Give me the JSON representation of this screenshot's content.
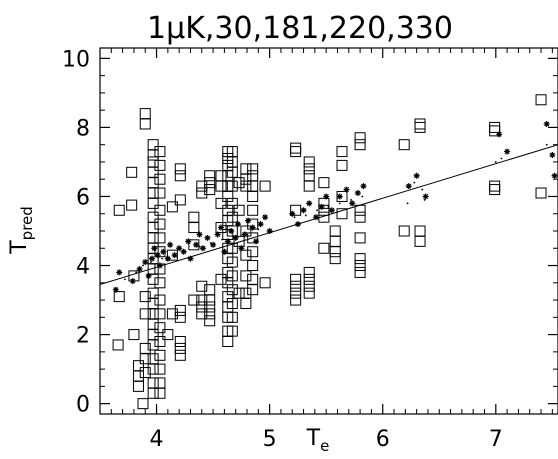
{
  "chart_data": {
    "type": "scatter",
    "title": "1μK,30,181,220,330",
    "xlabel": "Te",
    "ylabel": "Tpred",
    "xlim": [
      3.5,
      7.55
    ],
    "ylim": [
      -0.3,
      10.3
    ],
    "xticks": [
      4,
      5,
      6,
      7
    ],
    "yticks": [
      0,
      2,
      4,
      6,
      8,
      10
    ],
    "x_minor_ticks": [
      3.6,
      3.7,
      3.8,
      3.9,
      4.1,
      4.2,
      4.3,
      4.4,
      4.5,
      4.6,
      4.7,
      4.8,
      4.9,
      5.1,
      5.2,
      5.3,
      5.4,
      5.5,
      5.6,
      5.7,
      5.8,
      5.9,
      6.1,
      6.2,
      6.3,
      6.4,
      6.5,
      6.6,
      6.7,
      6.8,
      6.9,
      7.1,
      7.2,
      7.3,
      7.4,
      7.5
    ],
    "y_minor_ticks": [
      0.5,
      1,
      1.5,
      2.5,
      3,
      3.5,
      4.5,
      5,
      5.5,
      6.5,
      7,
      7.5,
      8.5,
      9,
      9.5
    ],
    "fit_line": {
      "x": [
        3.5,
        7.55
      ],
      "y": [
        3.45,
        7.5
      ]
    },
    "series": [
      {
        "marker": "square",
        "points": [
          [
            3.67,
            5.6
          ],
          [
            3.67,
            3.1
          ],
          [
            3.66,
            1.7
          ],
          [
            3.78,
            6.7
          ],
          [
            3.78,
            5.75
          ],
          [
            3.8,
            3.7
          ],
          [
            3.8,
            2.0
          ],
          [
            3.84,
            1.1
          ],
          [
            3.84,
            0.8
          ],
          [
            3.84,
            0.5
          ],
          [
            3.9,
            8.4
          ],
          [
            3.9,
            8.1
          ],
          [
            3.9,
            3.1
          ],
          [
            3.9,
            2.6
          ],
          [
            3.9,
            1.6
          ],
          [
            3.9,
            1.3
          ],
          [
            3.9,
            0.9
          ],
          [
            3.88,
            0.0
          ],
          [
            3.97,
            7.5
          ],
          [
            3.97,
            7.2
          ],
          [
            3.97,
            7.0
          ],
          [
            3.97,
            6.7
          ],
          [
            3.97,
            6.4
          ],
          [
            3.97,
            6.1
          ],
          [
            3.97,
            5.8
          ],
          [
            3.97,
            5.4
          ],
          [
            3.97,
            5.1
          ],
          [
            3.97,
            4.8
          ],
          [
            3.97,
            4.5
          ],
          [
            3.97,
            4.2
          ],
          [
            3.97,
            3.9
          ],
          [
            3.97,
            3.6
          ],
          [
            3.97,
            3.2
          ],
          [
            3.97,
            2.9
          ],
          [
            3.97,
            2.6
          ],
          [
            3.97,
            2.3
          ],
          [
            3.97,
            2.0
          ],
          [
            3.97,
            1.7
          ],
          [
            3.97,
            1.3
          ],
          [
            3.97,
            1.0
          ],
          [
            3.97,
            0.6
          ],
          [
            3.97,
            0.3
          ],
          [
            4.03,
            7.3
          ],
          [
            4.03,
            6.9
          ],
          [
            4.03,
            6.5
          ],
          [
            4.03,
            6.1
          ],
          [
            4.03,
            5.6
          ],
          [
            4.03,
            5.2
          ],
          [
            4.03,
            4.8
          ],
          [
            4.03,
            4.4
          ],
          [
            4.03,
            3.9
          ],
          [
            4.03,
            3.5
          ],
          [
            4.03,
            3.0
          ],
          [
            4.03,
            2.6
          ],
          [
            4.03,
            2.2
          ],
          [
            4.03,
            1.8
          ],
          [
            4.03,
            1.4
          ],
          [
            4.03,
            1.0
          ],
          [
            4.03,
            0.6
          ],
          [
            4.03,
            0.3
          ],
          [
            4.14,
            5.7
          ],
          [
            4.14,
            4.3
          ],
          [
            4.14,
            2.6
          ],
          [
            4.1,
            2.0
          ],
          [
            4.21,
            6.8
          ],
          [
            4.21,
            6.6
          ],
          [
            4.21,
            5.9
          ],
          [
            4.21,
            2.7
          ],
          [
            4.21,
            2.5
          ],
          [
            4.21,
            1.8
          ],
          [
            4.21,
            1.6
          ],
          [
            4.21,
            1.4
          ],
          [
            4.33,
            5.4
          ],
          [
            4.33,
            5.1
          ],
          [
            4.33,
            4.6
          ],
          [
            4.33,
            3.0
          ],
          [
            4.4,
            6.3
          ],
          [
            4.4,
            6.1
          ],
          [
            4.4,
            3.4
          ],
          [
            4.4,
            3.0
          ],
          [
            4.4,
            2.8
          ],
          [
            4.4,
            2.6
          ],
          [
            4.47,
            6.6
          ],
          [
            4.47,
            6.4
          ],
          [
            4.47,
            6.2
          ],
          [
            4.47,
            3.3
          ],
          [
            4.47,
            3.0
          ],
          [
            4.47,
            2.8
          ],
          [
            4.47,
            2.6
          ],
          [
            4.47,
            2.4
          ],
          [
            4.57,
            6.6
          ],
          [
            4.57,
            6.3
          ],
          [
            4.57,
            5.8
          ],
          [
            4.57,
            5.1
          ],
          [
            4.57,
            3.6
          ],
          [
            4.63,
            7.3
          ],
          [
            4.63,
            7.1
          ],
          [
            4.63,
            6.9
          ],
          [
            4.63,
            6.6
          ],
          [
            4.63,
            6.3
          ],
          [
            4.63,
            6.0
          ],
          [
            4.63,
            5.6
          ],
          [
            4.63,
            5.3
          ],
          [
            4.63,
            4.9
          ],
          [
            4.63,
            4.5
          ],
          [
            4.63,
            4.2
          ],
          [
            4.63,
            3.8
          ],
          [
            4.63,
            3.5
          ],
          [
            4.63,
            3.1
          ],
          [
            4.63,
            2.8
          ],
          [
            4.63,
            2.5
          ],
          [
            4.63,
            2.1
          ],
          [
            4.63,
            1.8
          ],
          [
            4.67,
            7.3
          ],
          [
            4.67,
            7.0
          ],
          [
            4.67,
            6.7
          ],
          [
            4.67,
            6.3
          ],
          [
            4.67,
            5.8
          ],
          [
            4.67,
            5.4
          ],
          [
            4.67,
            5.0
          ],
          [
            4.67,
            4.5
          ],
          [
            4.67,
            4.1
          ],
          [
            4.67,
            3.7
          ],
          [
            4.67,
            3.3
          ],
          [
            4.67,
            2.9
          ],
          [
            4.67,
            2.5
          ],
          [
            4.67,
            2.1
          ],
          [
            4.73,
            6.4
          ],
          [
            4.73,
            5.6
          ],
          [
            4.73,
            4.7
          ],
          [
            4.73,
            3.2
          ],
          [
            4.79,
            6.8
          ],
          [
            4.79,
            6.5
          ],
          [
            4.79,
            6.3
          ],
          [
            4.79,
            5.0
          ],
          [
            4.79,
            4.3
          ],
          [
            4.79,
            3.7
          ],
          [
            4.79,
            3.2
          ],
          [
            4.79,
            2.9
          ],
          [
            4.85,
            6.8
          ],
          [
            4.85,
            6.6
          ],
          [
            4.85,
            6.3
          ],
          [
            4.85,
            6.0
          ],
          [
            4.85,
            5.6
          ],
          [
            4.85,
            5.2
          ],
          [
            4.85,
            4.8
          ],
          [
            4.85,
            4.4
          ],
          [
            4.85,
            4.0
          ],
          [
            4.85,
            3.6
          ],
          [
            4.85,
            3.3
          ],
          [
            4.96,
            6.3
          ],
          [
            4.96,
            3.5
          ],
          [
            5.23,
            7.4
          ],
          [
            5.23,
            7.3
          ],
          [
            5.23,
            5.6
          ],
          [
            5.23,
            3.6
          ],
          [
            5.23,
            3.4
          ],
          [
            5.23,
            3.2
          ],
          [
            5.23,
            3.0
          ],
          [
            5.35,
            7.0
          ],
          [
            5.35,
            6.8
          ],
          [
            5.35,
            6.6
          ],
          [
            5.35,
            6.3
          ],
          [
            5.35,
            3.8
          ],
          [
            5.35,
            3.6
          ],
          [
            5.35,
            3.4
          ],
          [
            5.35,
            3.2
          ],
          [
            5.48,
            6.4
          ],
          [
            5.48,
            5.8
          ],
          [
            5.48,
            5.6
          ],
          [
            5.48,
            5.4
          ],
          [
            5.48,
            4.5
          ],
          [
            5.58,
            5.0
          ],
          [
            5.58,
            4.7
          ],
          [
            5.58,
            4.4
          ],
          [
            5.58,
            4.2
          ],
          [
            5.64,
            7.3
          ],
          [
            5.64,
            6.9
          ],
          [
            5.64,
            6.0
          ],
          [
            5.64,
            5.5
          ],
          [
            5.8,
            7.7
          ],
          [
            5.8,
            7.5
          ],
          [
            5.8,
            5.6
          ],
          [
            5.8,
            5.4
          ],
          [
            5.8,
            4.8
          ],
          [
            5.8,
            4.2
          ],
          [
            5.8,
            4.0
          ],
          [
            5.8,
            3.8
          ],
          [
            6.19,
            7.5
          ],
          [
            6.19,
            5.0
          ],
          [
            6.33,
            8.1
          ],
          [
            6.33,
            8.0
          ],
          [
            6.33,
            5.0
          ],
          [
            6.33,
            4.7
          ],
          [
            6.99,
            8.0
          ],
          [
            6.99,
            7.9
          ],
          [
            6.99,
            6.3
          ],
          [
            6.99,
            6.2
          ],
          [
            7.4,
            8.8
          ],
          [
            7.4,
            6.1
          ]
        ]
      },
      {
        "marker": "asterisk",
        "points": [
          [
            3.67,
            3.8
          ],
          [
            3.64,
            3.3
          ],
          [
            3.79,
            3.55
          ],
          [
            3.85,
            3.9
          ],
          [
            3.9,
            4.1
          ],
          [
            3.93,
            3.7
          ],
          [
            3.96,
            4.2
          ],
          [
            3.98,
            4.5
          ],
          [
            4.01,
            4.3
          ],
          [
            4.03,
            4.0
          ],
          [
            4.06,
            4.4
          ],
          [
            4.1,
            4.2
          ],
          [
            4.12,
            4.6
          ],
          [
            4.16,
            4.3
          ],
          [
            4.2,
            4.5
          ],
          [
            4.24,
            4.4
          ],
          [
            4.28,
            4.7
          ],
          [
            4.3,
            4.2
          ],
          [
            4.35,
            4.6
          ],
          [
            4.38,
            4.9
          ],
          [
            4.41,
            4.5
          ],
          [
            4.45,
            4.8
          ],
          [
            4.5,
            4.6
          ],
          [
            4.54,
            4.9
          ],
          [
            4.57,
            5.1
          ],
          [
            4.6,
            4.4
          ],
          [
            4.63,
            4.7
          ],
          [
            4.66,
            5.0
          ],
          [
            4.7,
            4.8
          ],
          [
            4.72,
            5.2
          ],
          [
            4.75,
            4.5
          ],
          [
            4.78,
            4.9
          ],
          [
            4.81,
            5.3
          ],
          [
            4.85,
            5.1
          ],
          [
            4.88,
            4.7
          ],
          [
            4.92,
            5.2
          ],
          [
            4.96,
            5.4
          ],
          [
            5.0,
            5.0
          ],
          [
            5.2,
            5.5
          ],
          [
            5.25,
            5.2
          ],
          [
            5.3,
            5.6
          ],
          [
            5.35,
            5.8
          ],
          [
            5.41,
            5.4
          ],
          [
            5.46,
            5.7
          ],
          [
            5.5,
            6.0
          ],
          [
            5.55,
            5.6
          ],
          [
            5.62,
            6.0
          ],
          [
            5.68,
            6.2
          ],
          [
            5.73,
            5.8
          ],
          [
            5.78,
            6.1
          ],
          [
            5.83,
            6.3
          ],
          [
            6.23,
            6.3
          ],
          [
            6.3,
            6.6
          ],
          [
            6.38,
            6.0
          ],
          [
            7.03,
            7.8
          ],
          [
            7.1,
            7.3
          ],
          [
            7.45,
            8.1
          ],
          [
            7.5,
            7.2
          ],
          [
            7.52,
            6.6
          ]
        ]
      },
      {
        "marker": "dot",
        "points": [
          [
            3.72,
            3.6
          ],
          [
            3.82,
            3.8
          ],
          [
            3.88,
            4.0
          ],
          [
            3.95,
            4.1
          ],
          [
            4.05,
            4.2
          ],
          [
            4.15,
            4.3
          ],
          [
            4.25,
            4.4
          ],
          [
            4.38,
            4.55
          ],
          [
            4.48,
            4.65
          ],
          [
            4.58,
            4.75
          ],
          [
            4.68,
            4.85
          ],
          [
            4.78,
            4.95
          ],
          [
            4.9,
            5.05
          ],
          [
            5.22,
            5.4
          ],
          [
            5.32,
            5.45
          ],
          [
            5.42,
            5.6
          ],
          [
            5.52,
            5.7
          ],
          [
            5.62,
            5.8
          ],
          [
            5.72,
            5.9
          ],
          [
            5.82,
            6.0
          ],
          [
            6.22,
            5.8
          ],
          [
            6.28,
            6.4
          ],
          [
            6.35,
            6.2
          ],
          [
            6.37,
            5.9
          ],
          [
            7.0,
            7.0
          ],
          [
            7.05,
            7.1
          ],
          [
            7.45,
            7.5
          ]
        ]
      }
    ]
  }
}
